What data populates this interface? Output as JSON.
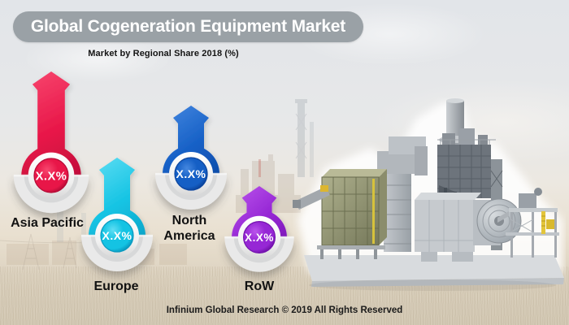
{
  "title": "Global Cogeneration Equipment Market",
  "subtitle": "Market by Regional Share 2018 (%)",
  "footer": "Infinium Global Research © 2019 All Rights Reserved",
  "brand": {
    "pill_color": "#9aa1a6"
  },
  "chart_data": {
    "type": "bar",
    "title": "Global Cogeneration Equipment Market",
    "subtitle": "Market by Regional Share 2018 (%)",
    "categories": [
      "Asia Pacific",
      "Europe",
      "North America",
      "RoW"
    ],
    "values": [
      "X.X%",
      "X.X%",
      "X.X%",
      "X.X%"
    ],
    "legend_position": "none",
    "regions": [
      {
        "label": "Asia Pacific",
        "value": "X.X%",
        "colors": {
          "light": "#f8476f",
          "main": "#e81648",
          "dark": "#b50c37"
        }
      },
      {
        "label": "Europe",
        "value": "X.X%",
        "colors": {
          "light": "#5fdef4",
          "main": "#14c3e3",
          "dark": "#0a9ac0"
        }
      },
      {
        "label": "North America",
        "value": "X.X%",
        "colors": {
          "light": "#4487e0",
          "main": "#155fc5",
          "dark": "#0c459e"
        }
      },
      {
        "label": "RoW",
        "value": "X.X%",
        "colors": {
          "light": "#bb55ec",
          "main": "#9627d5",
          "dark": "#7413ae"
        }
      }
    ],
    "pin_style": {
      "ring": "#ffffff",
      "saucer": "#e9e9e9",
      "value_text": "#ffffff"
    }
  }
}
